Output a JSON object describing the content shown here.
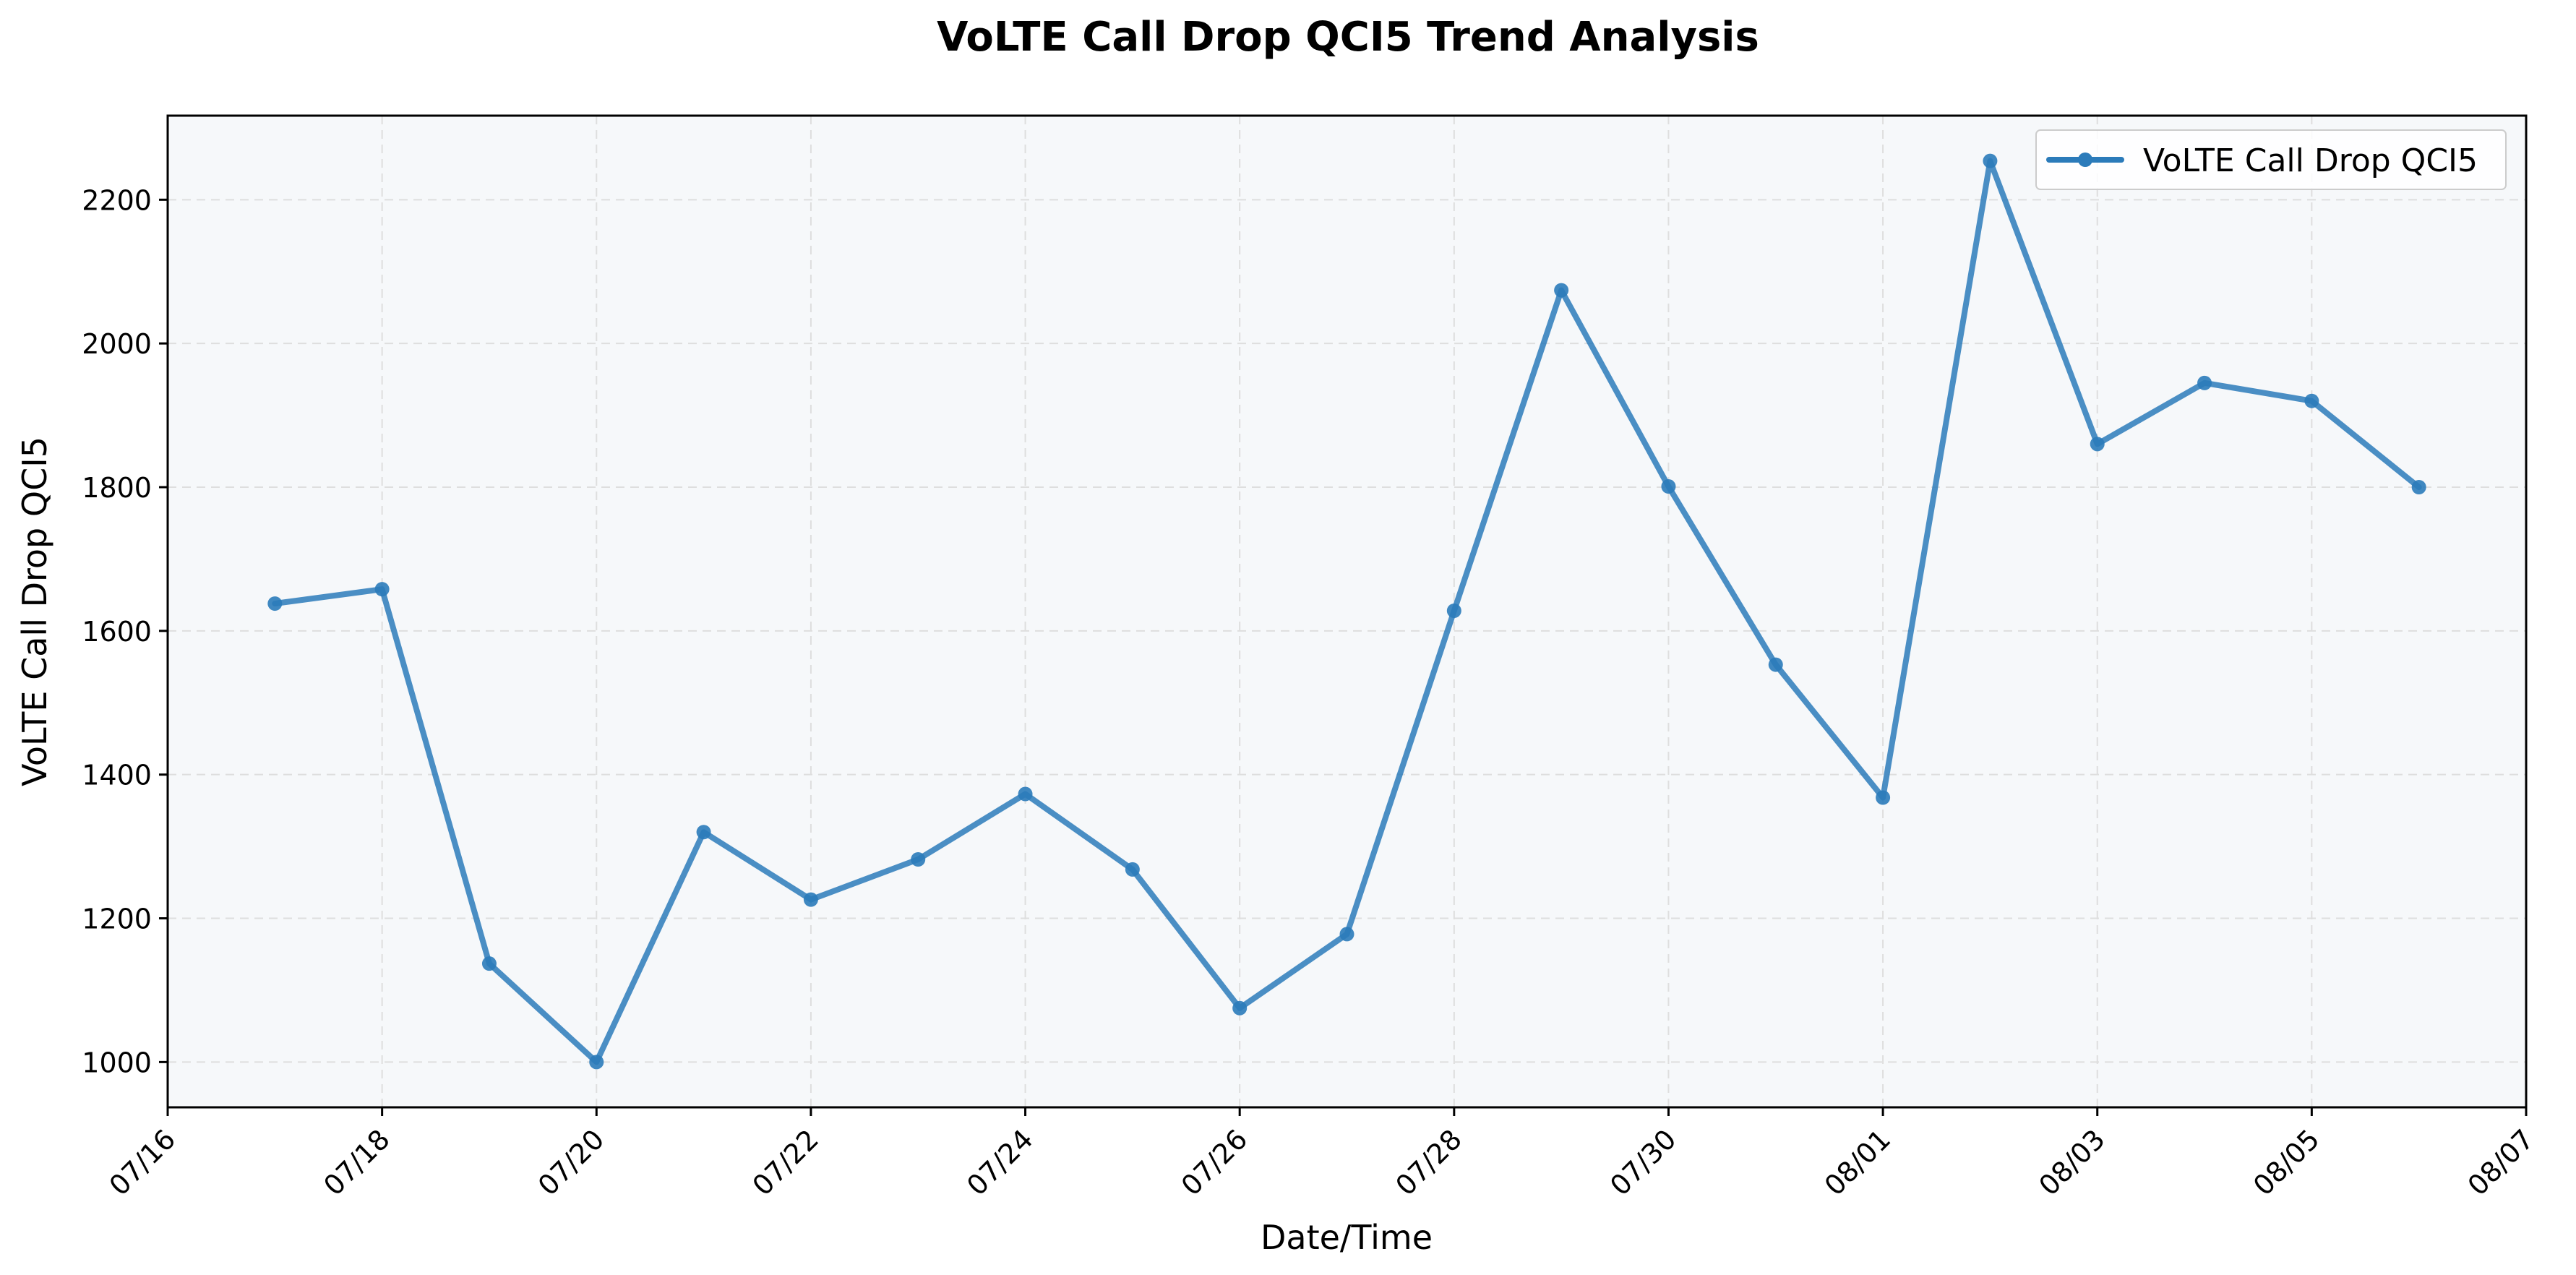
{
  "chart_data": {
    "type": "line",
    "title": "VoLTE Call Drop QCI5 Trend Analysis",
    "xlabel": "Date/Time",
    "ylabel": "VoLTE Call Drop QCI5",
    "x": [
      "2025-07-17",
      "2025-07-18",
      "2025-07-19",
      "2025-07-20",
      "2025-07-21",
      "2025-07-22",
      "2025-07-23",
      "2025-07-24",
      "2025-07-25",
      "2025-07-26",
      "2025-07-27",
      "2025-07-28",
      "2025-07-29",
      "2025-07-30",
      "2025-07-31",
      "2025-08-01",
      "2025-08-02",
      "2025-08-03",
      "2025-08-04",
      "2025-08-05",
      "2025-08-06"
    ],
    "series": [
      {
        "name": "VoLTE Call Drop QCI5",
        "values": [
          1638,
          1658,
          1137,
          1000,
          1320,
          1226,
          1282,
          1373,
          1268,
          1075,
          1178,
          1628,
          2074,
          1801,
          1553,
          1368,
          2254,
          1860,
          1945,
          1920,
          1800
        ]
      }
    ],
    "xticks": [
      "07/16",
      "07/18",
      "07/20",
      "07/22",
      "07/24",
      "07/26",
      "07/28",
      "07/30",
      "08/01",
      "08/03",
      "08/05",
      "08/07"
    ],
    "xlim": [
      "2025-07-16",
      "2025-08-07"
    ],
    "yticks": [
      1000,
      1200,
      1400,
      1600,
      1800,
      2000,
      2200
    ],
    "ylim": [
      937,
      2317
    ],
    "grid": true,
    "legend": "top-right",
    "colors": {
      "line": "#2b7bba",
      "plot_bg": "#f6f8fa",
      "grid": "#dedede"
    }
  }
}
